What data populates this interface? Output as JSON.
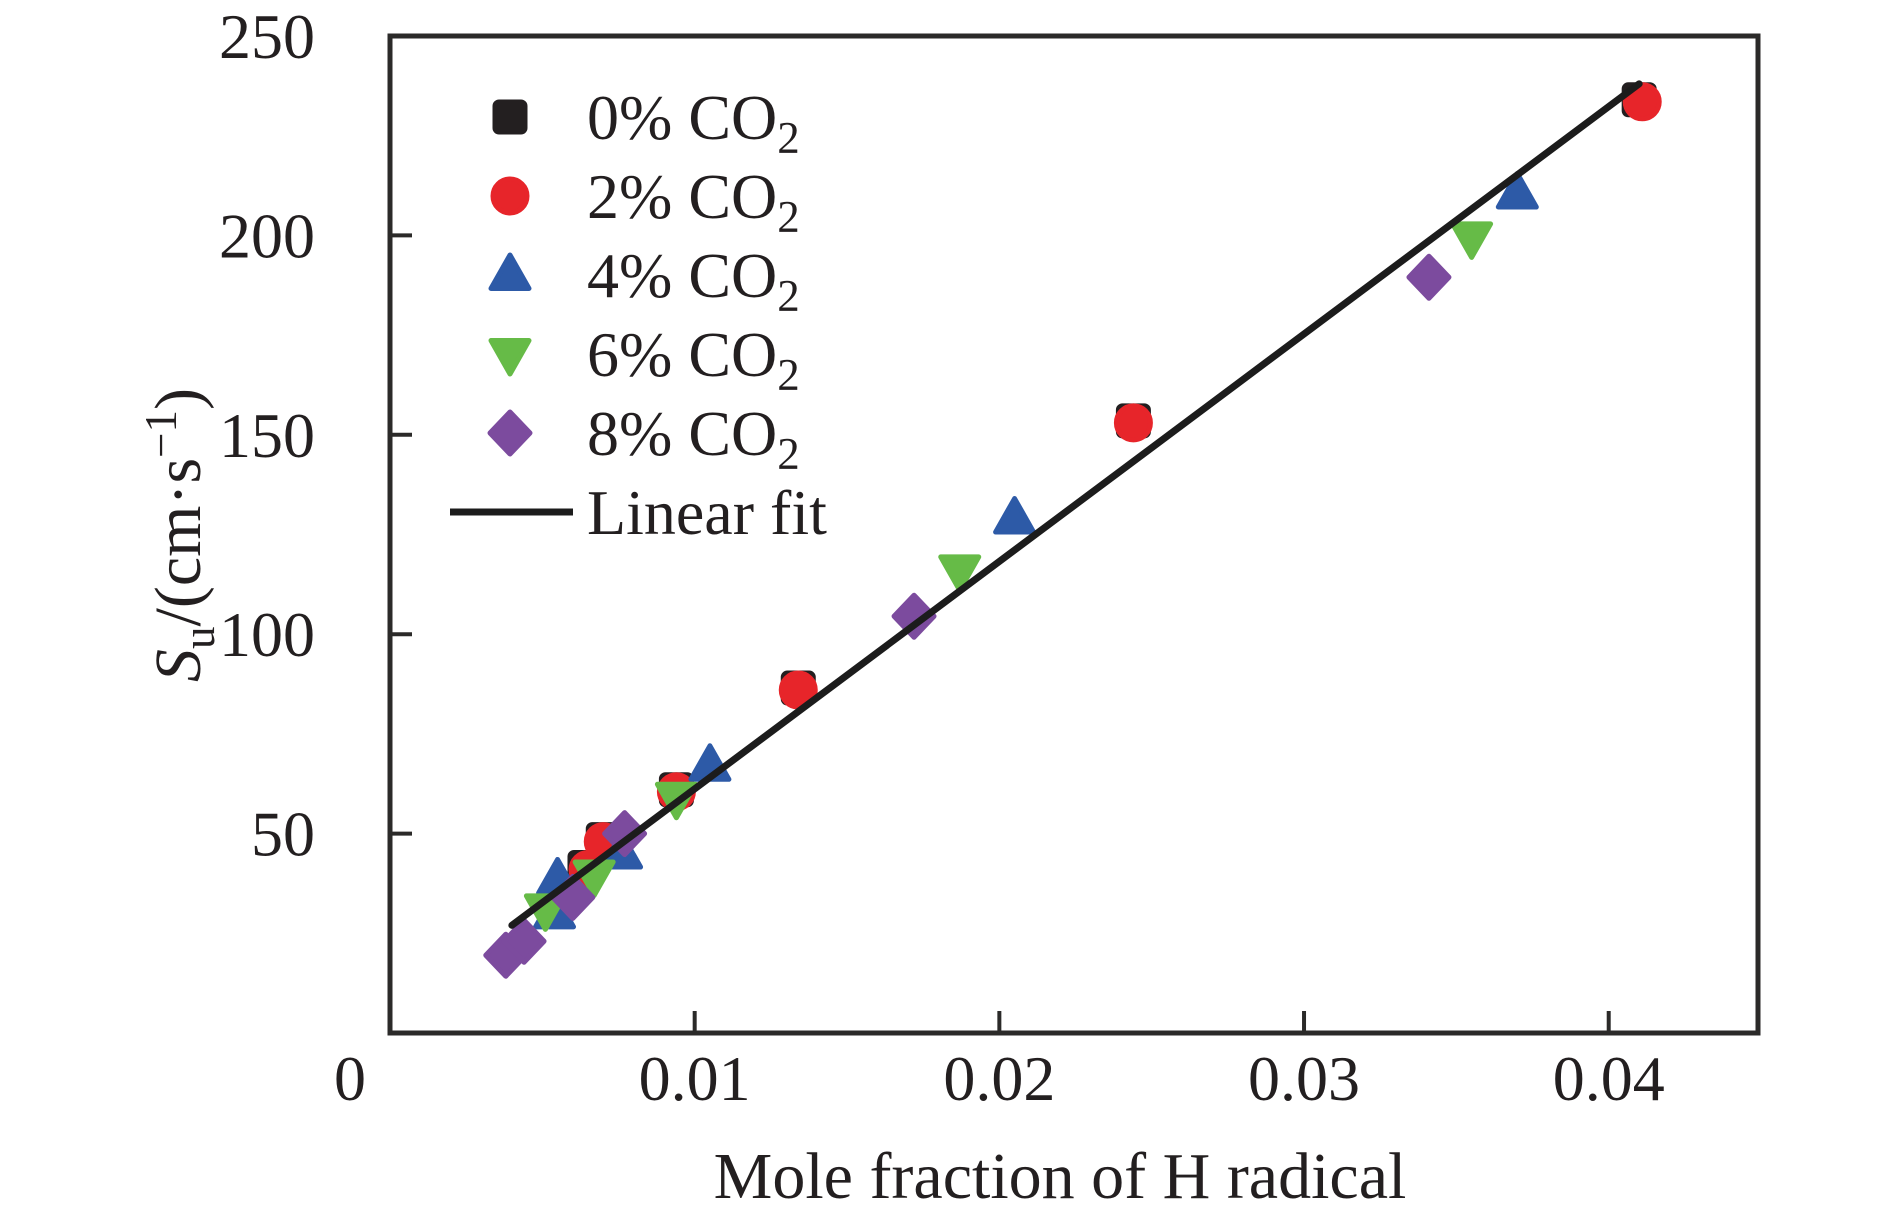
{
  "chart_data": {
    "type": "scatter",
    "title": "",
    "xlabel": "Mole fraction of H radical",
    "ylabel": {
      "symbol": "S",
      "symbol_sub": "u",
      "unit_prefix": "/(cm·s",
      "unit_sup": "−1",
      "unit_suffix": ")"
    },
    "ylabel_plain": "Su/(cm·s−1)",
    "xlim": [
      0,
      0.0449
    ],
    "ylim": [
      0,
      250
    ],
    "xticks": {
      "values": [
        0,
        0.01,
        0.02,
        0.03,
        0.04
      ],
      "labels": [
        "0",
        "0.01",
        "0.02",
        "0.03",
        "0.04"
      ]
    },
    "yticks": {
      "values": [
        50,
        100,
        150,
        200,
        250
      ],
      "labels": [
        "50",
        "100",
        "150",
        "200",
        "250"
      ]
    },
    "grid": false,
    "legend_position": "top-left",
    "axis_color": "#2b2a29",
    "text_color": "#231f20",
    "series": [
      {
        "name": "0% CO2",
        "label_prefix": "0% CO",
        "label_sub": "2",
        "marker": "square",
        "color": "#231f20",
        "points": [
          [
            0.0064,
            41.5
          ],
          [
            0.007,
            48.5
          ],
          [
            0.0094,
            61.0
          ],
          [
            0.0134,
            86.5
          ],
          [
            0.0244,
            153.5
          ],
          [
            0.041,
            234.0
          ]
        ]
      },
      {
        "name": "2% CO2",
        "label_prefix": "2% CO",
        "label_sub": "2",
        "marker": "circle",
        "color": "#e7252a",
        "points": [
          [
            0.0065,
            41.0
          ],
          [
            0.007,
            48.0
          ],
          [
            0.0094,
            60.5
          ],
          [
            0.0134,
            86.0
          ],
          [
            0.0244,
            153.0
          ],
          [
            0.0411,
            233.5
          ]
        ]
      },
      {
        "name": "4% CO2",
        "label_prefix": "4% CO",
        "label_sub": "2",
        "marker": "triangle-up",
        "color": "#2d5aa7",
        "points": [
          [
            0.0054,
            30.0
          ],
          [
            0.0055,
            38.5
          ],
          [
            0.0076,
            45.0
          ],
          [
            0.0105,
            67.0
          ],
          [
            0.0205,
            129.0
          ],
          [
            0.037,
            210.5
          ]
        ]
      },
      {
        "name": "6% CO2",
        "label_prefix": "6% CO",
        "label_sub": "2",
        "marker": "triangle-down",
        "color": "#66bb47",
        "points": [
          [
            0.0051,
            31.0
          ],
          [
            0.0067,
            39.5
          ],
          [
            0.0094,
            59.0
          ],
          [
            0.0187,
            116.0
          ],
          [
            0.0355,
            199.5
          ]
        ]
      },
      {
        "name": "8% CO2",
        "label_prefix": "8% CO",
        "label_sub": "2",
        "marker": "diamond",
        "color": "#7c4b9e",
        "points": [
          [
            0.0038,
            19.5
          ],
          [
            0.0044,
            23.0
          ],
          [
            0.006,
            34.0
          ],
          [
            0.0077,
            50.0
          ],
          [
            0.0172,
            104.5
          ],
          [
            0.0341,
            189.5
          ]
        ]
      }
    ],
    "fit_line": {
      "label": "Linear fit",
      "color": "#1c1c1c",
      "x1": 0.004,
      "y1": 27.0,
      "x2": 0.041,
      "y2": 238.0
    }
  }
}
